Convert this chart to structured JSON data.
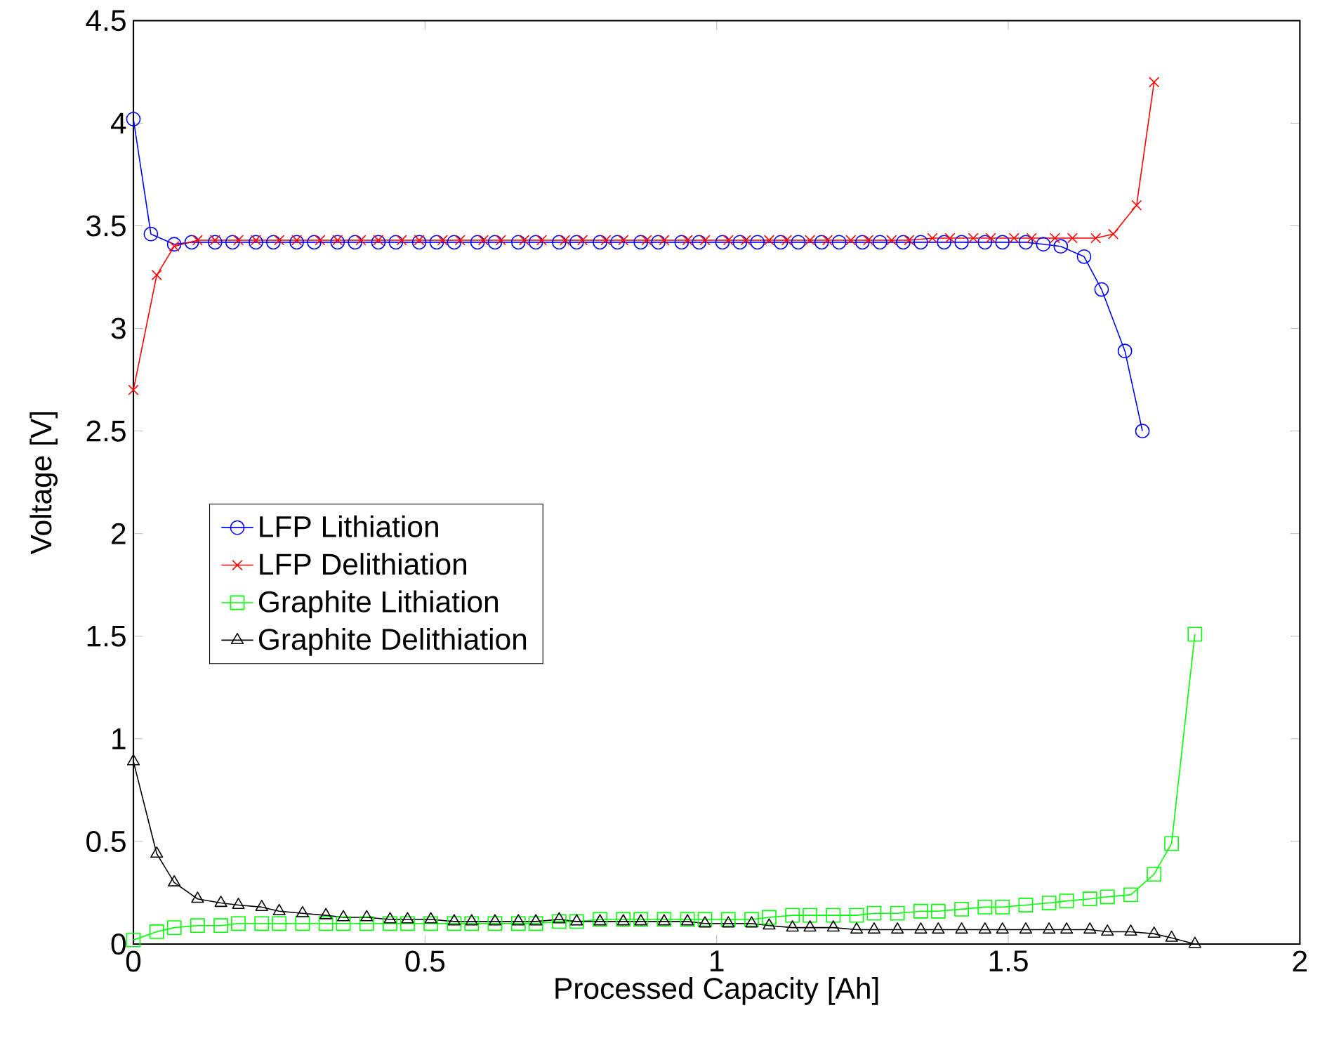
{
  "chart_data": {
    "type": "line",
    "xlabel": "Processed Capacity [Ah]",
    "ylabel": "Voltage [V]",
    "xlim": [
      0,
      2
    ],
    "ylim": [
      0,
      4.5
    ],
    "xticks": [
      0,
      0.5,
      1,
      1.5,
      2
    ],
    "yticks": [
      0,
      0.5,
      1,
      1.5,
      2,
      2.5,
      3,
      3.5,
      4,
      4.5
    ],
    "grid": false,
    "legend": "left",
    "line_style": "solid",
    "series": [
      {
        "name": "LFP Lithiation",
        "color": "#0000ff",
        "marker": "circle",
        "x": [
          0,
          0.03,
          0.07,
          0.1,
          0.14,
          0.17,
          0.21,
          0.24,
          0.28,
          0.31,
          0.35,
          0.38,
          0.42,
          0.45,
          0.49,
          0.52,
          0.55,
          0.59,
          0.62,
          0.66,
          0.69,
          0.73,
          0.76,
          0.8,
          0.83,
          0.87,
          0.9,
          0.94,
          0.97,
          1.01,
          1.04,
          1.07,
          1.11,
          1.14,
          1.18,
          1.21,
          1.25,
          1.28,
          1.32,
          1.35,
          1.39,
          1.42,
          1.46,
          1.49,
          1.53,
          1.56,
          1.59,
          1.63,
          1.66,
          1.7,
          1.73
        ],
        "values": [
          4.02,
          3.46,
          3.41,
          3.42,
          3.42,
          3.42,
          3.42,
          3.42,
          3.42,
          3.42,
          3.42,
          3.42,
          3.42,
          3.42,
          3.42,
          3.42,
          3.42,
          3.42,
          3.42,
          3.42,
          3.42,
          3.42,
          3.42,
          3.42,
          3.42,
          3.42,
          3.42,
          3.42,
          3.42,
          3.42,
          3.42,
          3.42,
          3.42,
          3.42,
          3.42,
          3.42,
          3.42,
          3.42,
          3.42,
          3.42,
          3.42,
          3.42,
          3.42,
          3.42,
          3.42,
          3.41,
          3.4,
          3.35,
          3.19,
          2.89,
          2.5
        ]
      },
      {
        "name": "LFP Delithiation",
        "color": "#ff0000",
        "marker": "cross",
        "x": [
          0,
          0.04,
          0.07,
          0.11,
          0.14,
          0.18,
          0.21,
          0.25,
          0.28,
          0.32,
          0.35,
          0.39,
          0.42,
          0.46,
          0.49,
          0.53,
          0.56,
          0.6,
          0.63,
          0.67,
          0.7,
          0.74,
          0.77,
          0.81,
          0.84,
          0.88,
          0.91,
          0.95,
          0.98,
          1.02,
          1.05,
          1.09,
          1.12,
          1.16,
          1.19,
          1.23,
          1.26,
          1.3,
          1.33,
          1.37,
          1.4,
          1.44,
          1.47,
          1.51,
          1.54,
          1.58,
          1.61,
          1.65,
          1.68,
          1.72,
          1.75
        ],
        "values": [
          2.7,
          3.26,
          3.4,
          3.43,
          3.43,
          3.43,
          3.43,
          3.43,
          3.43,
          3.43,
          3.43,
          3.43,
          3.43,
          3.43,
          3.43,
          3.43,
          3.43,
          3.43,
          3.43,
          3.43,
          3.43,
          3.43,
          3.43,
          3.43,
          3.43,
          3.43,
          3.43,
          3.43,
          3.43,
          3.43,
          3.43,
          3.43,
          3.43,
          3.43,
          3.43,
          3.43,
          3.43,
          3.43,
          3.43,
          3.44,
          3.44,
          3.44,
          3.44,
          3.44,
          3.44,
          3.44,
          3.44,
          3.44,
          3.46,
          3.6,
          4.2
        ]
      },
      {
        "name": "Graphite Lithiation",
        "color": "#00ff00",
        "marker": "square",
        "x": [
          0,
          0.04,
          0.07,
          0.11,
          0.15,
          0.18,
          0.22,
          0.25,
          0.29,
          0.33,
          0.36,
          0.4,
          0.44,
          0.47,
          0.51,
          0.55,
          0.58,
          0.62,
          0.66,
          0.69,
          0.73,
          0.76,
          0.8,
          0.84,
          0.87,
          0.91,
          0.95,
          0.98,
          1.02,
          1.06,
          1.09,
          1.13,
          1.16,
          1.2,
          1.24,
          1.27,
          1.31,
          1.35,
          1.38,
          1.42,
          1.46,
          1.49,
          1.53,
          1.57,
          1.6,
          1.64,
          1.67,
          1.71,
          1.75,
          1.78,
          1.82
        ],
        "values": [
          0.02,
          0.06,
          0.08,
          0.09,
          0.09,
          0.1,
          0.1,
          0.1,
          0.1,
          0.1,
          0.1,
          0.1,
          0.1,
          0.1,
          0.1,
          0.1,
          0.1,
          0.1,
          0.1,
          0.1,
          0.11,
          0.11,
          0.12,
          0.12,
          0.12,
          0.12,
          0.12,
          0.12,
          0.12,
          0.12,
          0.13,
          0.14,
          0.14,
          0.14,
          0.14,
          0.15,
          0.15,
          0.16,
          0.16,
          0.17,
          0.18,
          0.18,
          0.19,
          0.2,
          0.21,
          0.22,
          0.23,
          0.24,
          0.34,
          0.49,
          1.51
        ]
      },
      {
        "name": "Graphite Delithiation",
        "color": "#000000",
        "marker": "triangle",
        "x": [
          0,
          0.04,
          0.07,
          0.11,
          0.15,
          0.18,
          0.22,
          0.25,
          0.29,
          0.33,
          0.36,
          0.4,
          0.44,
          0.47,
          0.51,
          0.55,
          0.58,
          0.62,
          0.66,
          0.69,
          0.73,
          0.76,
          0.8,
          0.84,
          0.87,
          0.91,
          0.95,
          0.98,
          1.02,
          1.06,
          1.09,
          1.13,
          1.16,
          1.2,
          1.24,
          1.27,
          1.31,
          1.35,
          1.38,
          1.42,
          1.46,
          1.49,
          1.53,
          1.57,
          1.6,
          1.64,
          1.67,
          1.71,
          1.75,
          1.78,
          1.82
        ],
        "values": [
          0.89,
          0.44,
          0.3,
          0.22,
          0.2,
          0.19,
          0.18,
          0.16,
          0.15,
          0.14,
          0.13,
          0.13,
          0.12,
          0.12,
          0.12,
          0.11,
          0.11,
          0.11,
          0.11,
          0.11,
          0.12,
          0.11,
          0.11,
          0.11,
          0.11,
          0.11,
          0.11,
          0.1,
          0.1,
          0.1,
          0.09,
          0.08,
          0.08,
          0.08,
          0.07,
          0.07,
          0.07,
          0.07,
          0.07,
          0.07,
          0.07,
          0.07,
          0.07,
          0.07,
          0.07,
          0.07,
          0.06,
          0.06,
          0.05,
          0.03,
          0.0
        ]
      }
    ]
  }
}
